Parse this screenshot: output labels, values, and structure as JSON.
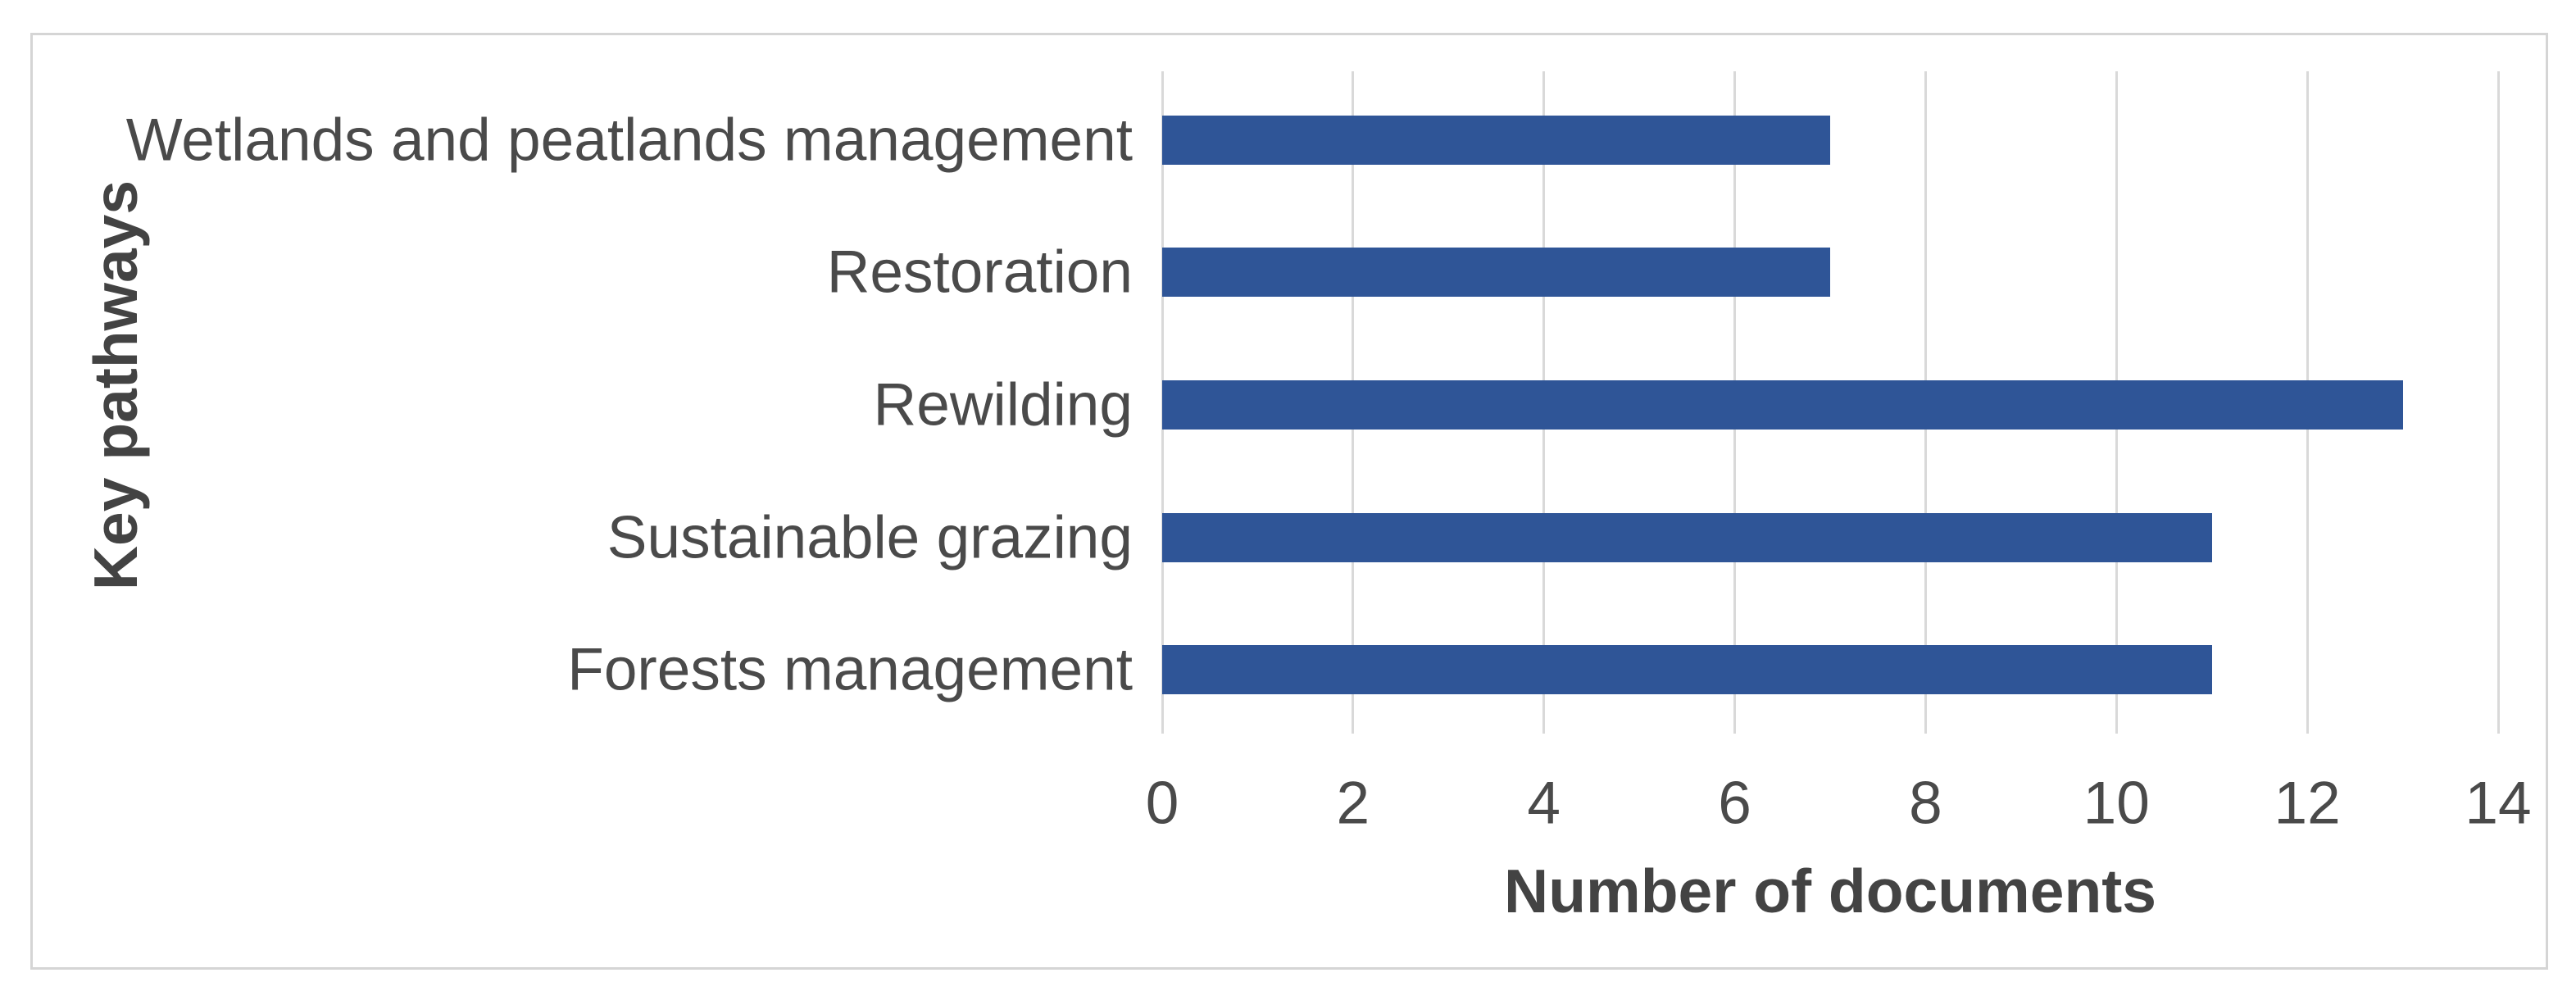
{
  "chart_data": {
    "type": "bar",
    "orientation": "horizontal",
    "categories": [
      "Wetlands and peatlands management",
      "Restoration",
      "Rewilding",
      "Sustainable grazing",
      "Forests management"
    ],
    "values": [
      7,
      7,
      13,
      11,
      11
    ],
    "title": "",
    "xlabel": "Number of documents",
    "ylabel": "Key pathways",
    "xlim": [
      0,
      14
    ],
    "xticks": [
      0,
      2,
      4,
      6,
      8,
      10,
      12,
      14
    ],
    "grid": "vertical-at-ticks",
    "legend": "none",
    "bar_color": "#2F5597",
    "gridline_color": "#D9D9D9",
    "text_color": "#4A4A4A",
    "axis_title_color": "#434343",
    "frame_border_color": "#D5D5D5"
  }
}
